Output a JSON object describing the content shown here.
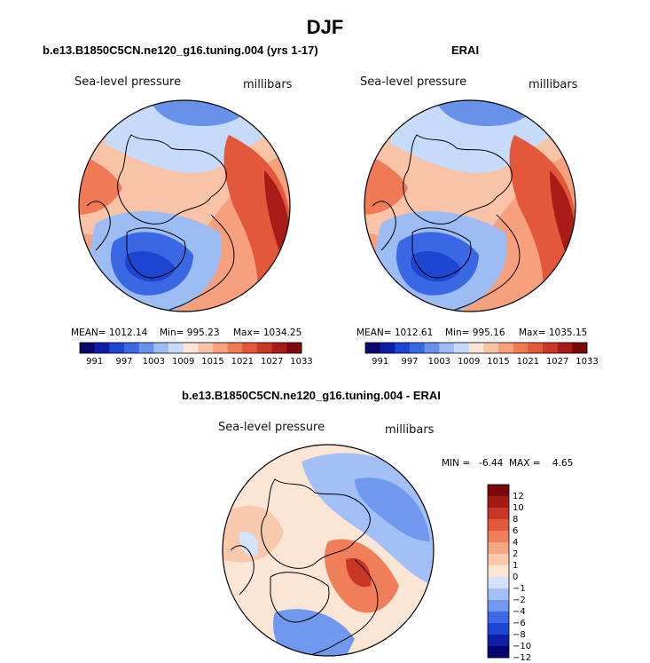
{
  "figure": {
    "title": "DJF"
  },
  "chart_data": [
    {
      "type": "heatmap",
      "projection": "north-polar-stereographic",
      "title": "b.e13.B1850C5CN.ne120_g16.tuning.004 (yrs 1-17)",
      "left_label": "Sea-level pressure",
      "right_label": "millibars",
      "mean_text": "MEAN= 1012.14",
      "min_text": "Min= 995.23",
      "max_text": "Max= 1034.25",
      "stats": {
        "mean": 1012.14,
        "min": 995.23,
        "max": 1034.25
      },
      "colorbar": {
        "orientation": "horizontal",
        "levels": [
          991,
          994,
          997,
          1000,
          1003,
          1006,
          1009,
          1012,
          1015,
          1018,
          1021,
          1024,
          1027,
          1030,
          1033
        ],
        "tick_labels": [
          "991",
          "997",
          "1003",
          "1009",
          "1015",
          "1021",
          "1027",
          "1033"
        ],
        "colors": [
          "#08086b",
          "#0b1fa6",
          "#1e45d2",
          "#3a68e4",
          "#6892ea",
          "#9cbcf3",
          "#c6dafa",
          "#fbe3d5",
          "#f9c3a8",
          "#f6a07e",
          "#f07a56",
          "#e3573a",
          "#cb3727",
          "#a81b17",
          "#7d0a0a"
        ]
      }
    },
    {
      "type": "heatmap",
      "projection": "north-polar-stereographic",
      "title": "ERAI",
      "left_label": "Sea-level pressure",
      "right_label": "millibars",
      "mean_text": "MEAN= 1012.61",
      "min_text": "Min= 995.16",
      "max_text": "Max= 1035.15",
      "stats": {
        "mean": 1012.61,
        "min": 995.16,
        "max": 1035.15
      },
      "colorbar": {
        "orientation": "horizontal",
        "levels": [
          991,
          994,
          997,
          1000,
          1003,
          1006,
          1009,
          1012,
          1015,
          1018,
          1021,
          1024,
          1027,
          1030,
          1033
        ],
        "tick_labels": [
          "991",
          "997",
          "1003",
          "1009",
          "1015",
          "1021",
          "1027",
          "1033"
        ],
        "colors": [
          "#08086b",
          "#0b1fa6",
          "#1e45d2",
          "#3a68e4",
          "#6892ea",
          "#9cbcf3",
          "#c6dafa",
          "#fbe3d5",
          "#f9c3a8",
          "#f6a07e",
          "#f07a56",
          "#e3573a",
          "#cb3727",
          "#a81b17",
          "#7d0a0a"
        ]
      }
    },
    {
      "type": "heatmap",
      "projection": "north-polar-stereographic",
      "title": "b.e13.B1850C5CN.ne120_g16.tuning.004 - ERAI",
      "left_label": "Sea-level pressure",
      "right_label": "millibars",
      "minmax_text": "MIN =   -6.44  MAX =    4.65",
      "stats": {
        "min": -6.44,
        "max": 4.65
      },
      "colorbar": {
        "orientation": "vertical",
        "levels": [
          -12,
          -10,
          -8,
          -6,
          -4,
          -2,
          -1,
          0,
          1,
          2,
          4,
          6,
          8,
          10,
          12
        ],
        "tick_labels": [
          "12",
          "10",
          "8",
          "6",
          "4",
          "2",
          "1",
          "0",
          "−1",
          "−2",
          "−4",
          "−6",
          "−8",
          "−10",
          "−12"
        ],
        "colors": [
          "#050570",
          "#0c1fa6",
          "#1f45d6",
          "#3a6ae6",
          "#6f98ee",
          "#a2c0f5",
          "#d2e3fb",
          "#fbe6d6",
          "#f8c9ad",
          "#f5a683",
          "#f07e58",
          "#e3573a",
          "#c93626",
          "#a41b16",
          "#7a0a0a"
        ]
      }
    }
  ]
}
